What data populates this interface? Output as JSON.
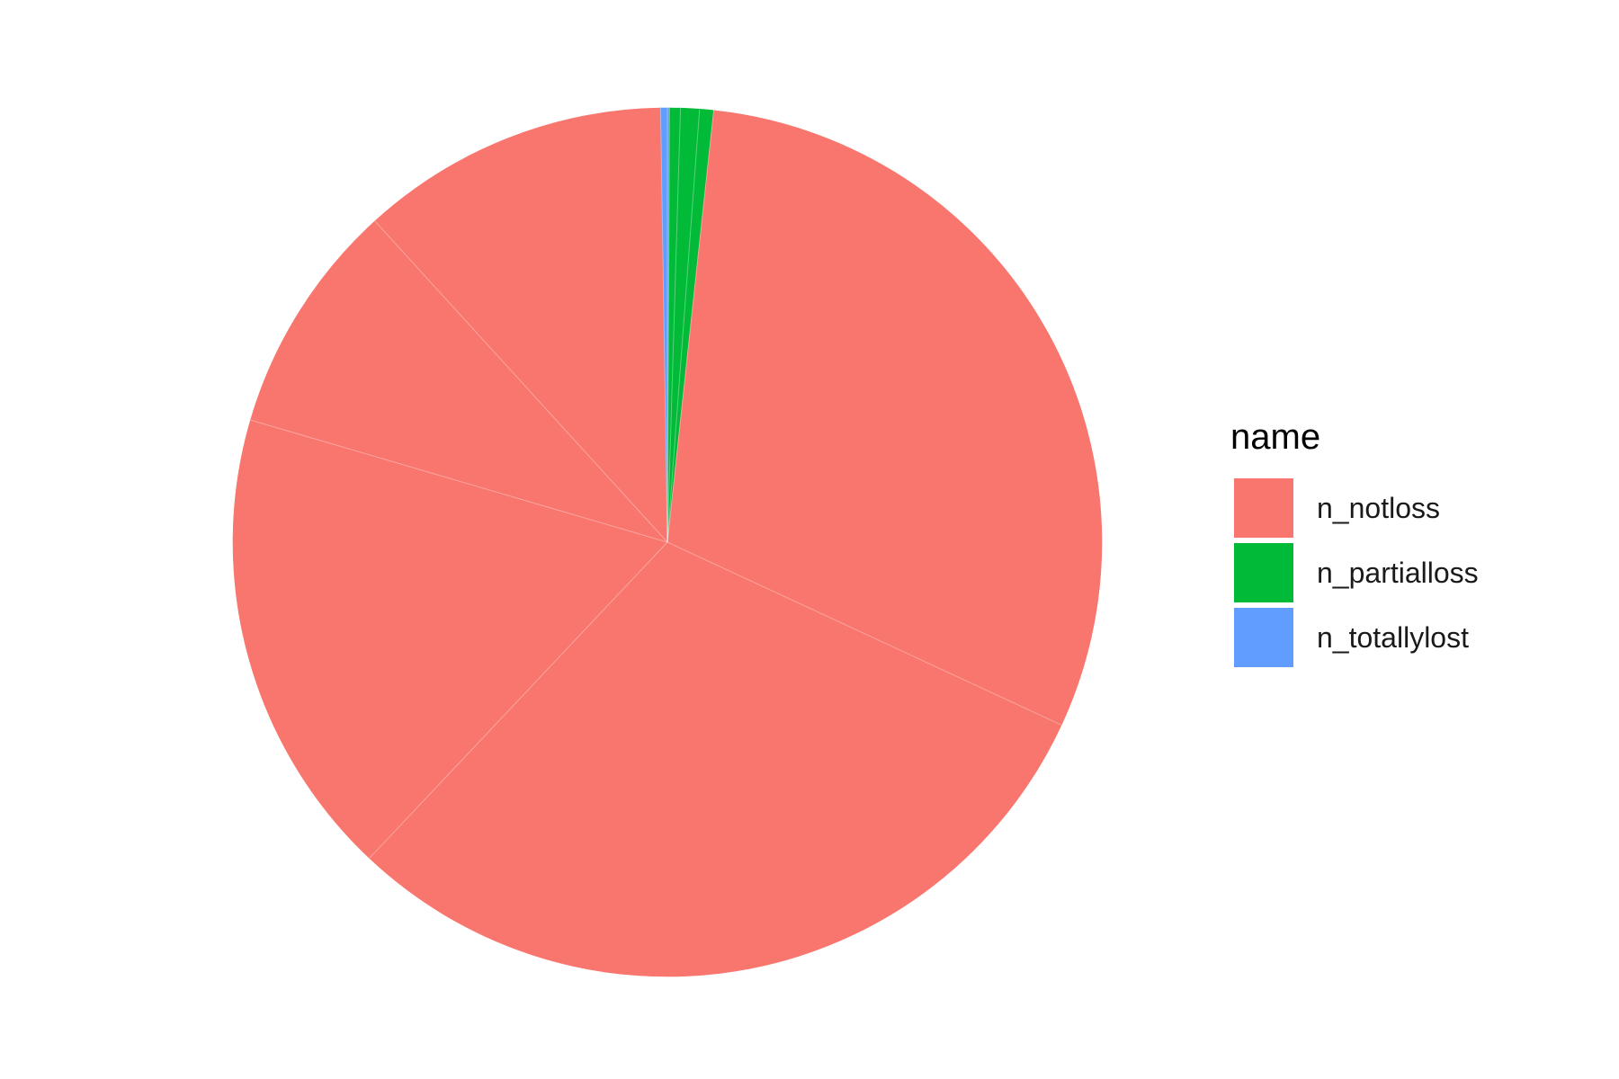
{
  "chart_data": {
    "type": "pie",
    "title": "",
    "legend": {
      "title": "name",
      "placement": "right",
      "entries": [
        {
          "label": "n_notloss",
          "color": "#F8766D"
        },
        {
          "label": "n_partialloss",
          "color": "#00BA38"
        },
        {
          "label": "n_totallylost",
          "color": "#619CFF"
        }
      ]
    },
    "start_angle": "12 o'clock",
    "direction": "clockwise",
    "slices": [
      {
        "name": "n_totallylost",
        "value": 0.08
      },
      {
        "name": "n_partialloss",
        "value": 0.4
      },
      {
        "name": "n_partialloss",
        "value": 0.7
      },
      {
        "name": "n_partialloss",
        "value": 0.52
      },
      {
        "name": "n_notloss",
        "value": 30.2
      },
      {
        "name": "n_notloss",
        "value": 30.1
      },
      {
        "name": "n_notloss",
        "value": 17.5
      },
      {
        "name": "n_notloss",
        "value": 8.7
      },
      {
        "name": "n_notloss",
        "value": 11.5
      },
      {
        "name": "n_totallylost",
        "value": 0.25
      }
    ]
  }
}
